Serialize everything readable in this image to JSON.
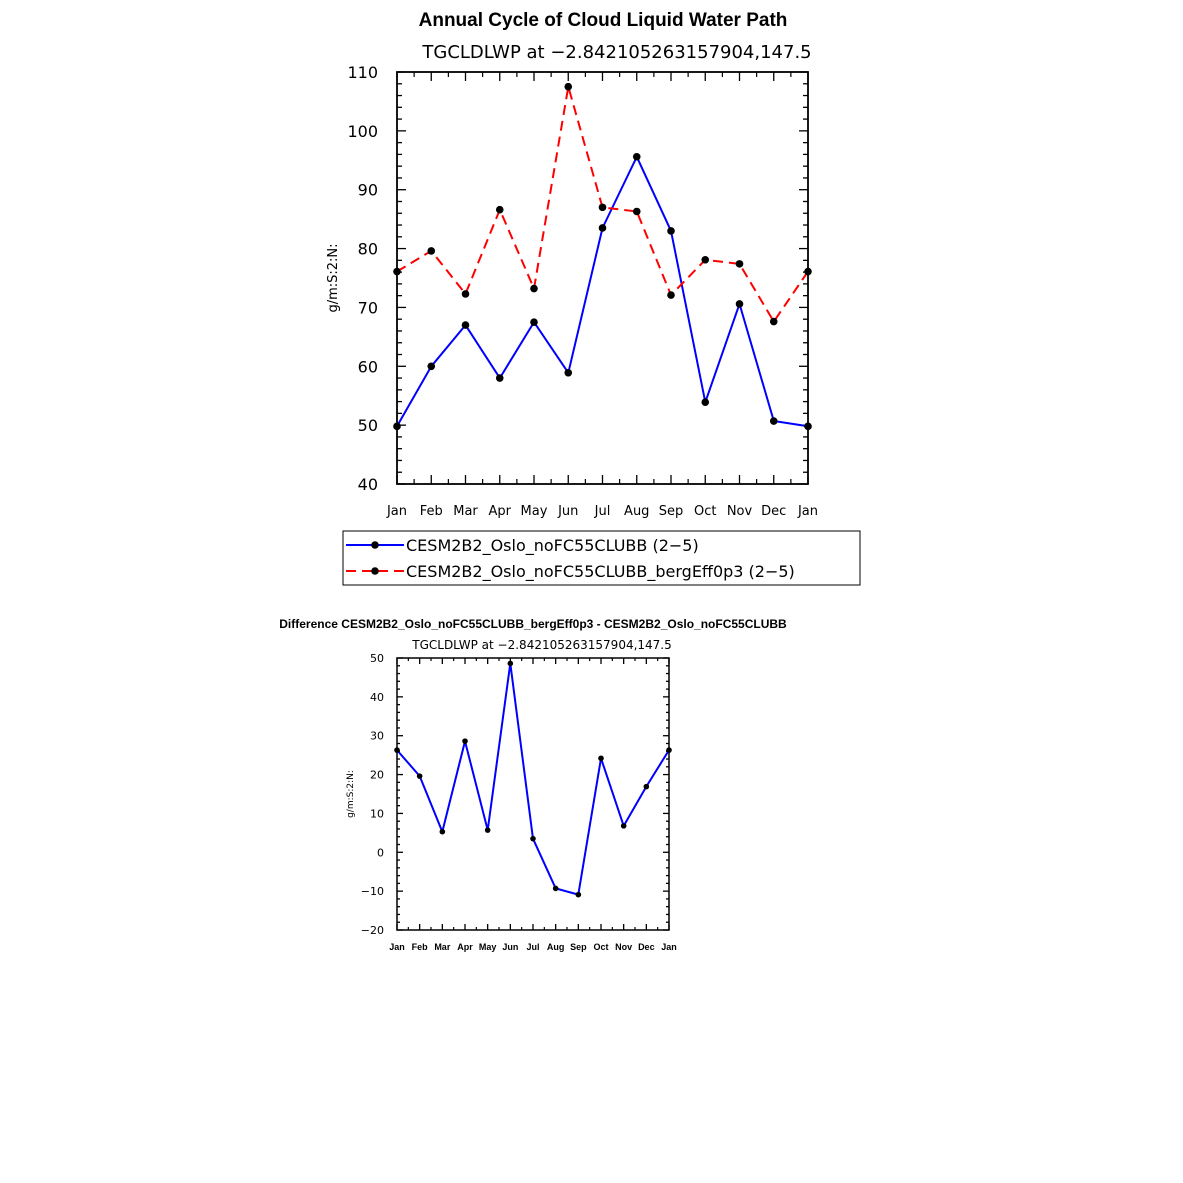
{
  "colors": {
    "series1": "#0000ff",
    "series2": "#ff0000",
    "diff": "#0000ff",
    "axis": "#000000",
    "marker": "#000000"
  },
  "chart_data": [
    {
      "id": "annual-cycle",
      "type": "line",
      "title": "Annual Cycle of Cloud Liquid Water Path",
      "subtitle": "TGCLDLWP  at  −2.842105263157904,147.5",
      "xlabel": "",
      "ylabel": "g/m:S:2:N:",
      "categories": [
        "Jan",
        "Feb",
        "Mar",
        "Apr",
        "May",
        "Jun",
        "Jul",
        "Aug",
        "Sep",
        "Oct",
        "Nov",
        "Dec",
        "Jan"
      ],
      "ylim": [
        40,
        110
      ],
      "yticks": [
        40,
        50,
        60,
        70,
        80,
        90,
        100,
        110
      ],
      "ytick_labels": [
        "40",
        "50",
        "60",
        "70",
        "80",
        "90",
        "100",
        "110"
      ],
      "series": [
        {
          "name": "CESM2B2_Oslo_noFC55CLUBB (2−5)",
          "color": "#0000ff",
          "dash": "solid",
          "values": [
            49.8,
            60.0,
            67.0,
            58.0,
            67.5,
            58.9,
            83.5,
            95.6,
            83.0,
            53.9,
            70.6,
            50.7,
            49.8
          ]
        },
        {
          "name": "CESM2B2_Oslo_noFC55CLUBB_bergEff0p3 (2−5)",
          "color": "#ff0000",
          "dash": "dashed",
          "values": [
            76.1,
            79.6,
            72.3,
            86.6,
            73.2,
            107.5,
            87.0,
            86.3,
            72.1,
            78.1,
            77.4,
            67.6,
            76.1
          ]
        }
      ],
      "legend": "below"
    },
    {
      "id": "difference",
      "type": "line",
      "title": "Difference CESM2B2_Oslo_noFC55CLUBB_bergEff0p3 - CESM2B2_Oslo_noFC55CLUBB",
      "subtitle": "TGCLDLWP  at  −2.842105263157904,147.5",
      "xlabel": "",
      "ylabel": "g/m:S:2:N:",
      "categories": [
        "Jan",
        "Feb",
        "Mar",
        "Apr",
        "May",
        "Jun",
        "Jul",
        "Aug",
        "Sep",
        "Oct",
        "Nov",
        "Dec",
        "Jan"
      ],
      "ylim": [
        -20,
        50
      ],
      "yticks": [
        -20,
        -10,
        0,
        10,
        20,
        30,
        40,
        50
      ],
      "ytick_labels": [
        "−20",
        "−10",
        "0",
        "10",
        "20",
        "30",
        "40",
        "50"
      ],
      "series": [
        {
          "name": "Difference",
          "color": "#0000ff",
          "dash": "solid",
          "values": [
            26.3,
            19.6,
            5.3,
            28.6,
            5.7,
            48.6,
            3.5,
            -9.3,
            -10.9,
            24.2,
            6.8,
            16.9,
            26.3
          ]
        }
      ]
    }
  ]
}
